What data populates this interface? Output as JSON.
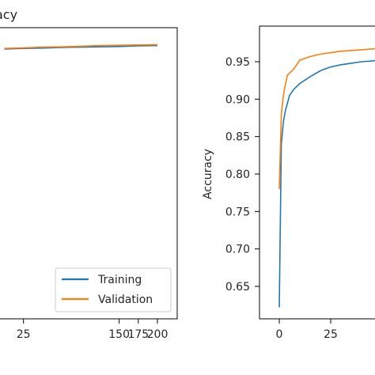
{
  "chart_data": [
    {
      "type": "line",
      "title": "Accuracy",
      "title_visible_fragment": "acy",
      "xlabel": "",
      "ylabel": "",
      "xlim": [
        -10,
        210
      ],
      "x_ticks": [
        25,
        150,
        175,
        200
      ],
      "x_tick_labels": [
        "25",
        "150",
        "175",
        "200"
      ],
      "legend": {
        "placement": "bottom-right",
        "entries": [
          "Training",
          "Validation"
        ]
      },
      "series": [
        {
          "name": "Training",
          "color": "#1f77b4",
          "x": [
            0,
            25,
            50,
            75,
            100,
            125,
            150,
            175,
            200
          ],
          "values": [
            0.96,
            0.962,
            0.963,
            0.965,
            0.966,
            0.967,
            0.968,
            0.97,
            0.971
          ]
        },
        {
          "name": "Validation",
          "color": "#ff7f0e",
          "x": [
            0,
            25,
            50,
            75,
            100,
            125,
            150,
            175,
            200
          ],
          "values": [
            0.962,
            0.964,
            0.966,
            0.967,
            0.969,
            0.971,
            0.972,
            0.973,
            0.974
          ]
        }
      ]
    },
    {
      "type": "line",
      "title": "",
      "xlabel": "",
      "ylabel": "Accuracy",
      "ylim": [
        0.6,
        1.0
      ],
      "y_ticks": [
        0.65,
        0.7,
        0.75,
        0.8,
        0.85,
        0.9,
        0.95
      ],
      "y_tick_labels": [
        "0.65",
        "0.70",
        "0.75",
        "0.80",
        "0.85",
        "0.90",
        "0.95"
      ],
      "x_ticks": [
        0,
        25
      ],
      "x_tick_labels": [
        "0",
        "25"
      ],
      "series": [
        {
          "name": "Training",
          "color": "#1f77b4",
          "x": [
            0,
            1,
            2,
            3,
            4,
            5,
            7,
            10,
            15,
            20,
            25,
            30,
            35,
            40,
            45,
            50
          ],
          "values": [
            0.622,
            0.84,
            0.87,
            0.885,
            0.895,
            0.905,
            0.913,
            0.921,
            0.93,
            0.938,
            0.943,
            0.946,
            0.948,
            0.95,
            0.951,
            0.953
          ]
        },
        {
          "name": "Validation",
          "color": "#ff7f0e",
          "x": [
            0,
            1,
            2,
            3,
            4,
            5,
            7,
            10,
            15,
            20,
            25,
            30,
            35,
            40,
            45,
            50
          ],
          "values": [
            0.78,
            0.88,
            0.905,
            0.92,
            0.932,
            0.935,
            0.94,
            0.952,
            0.957,
            0.96,
            0.962,
            0.964,
            0.965,
            0.966,
            0.967,
            0.968
          ]
        }
      ]
    }
  ]
}
